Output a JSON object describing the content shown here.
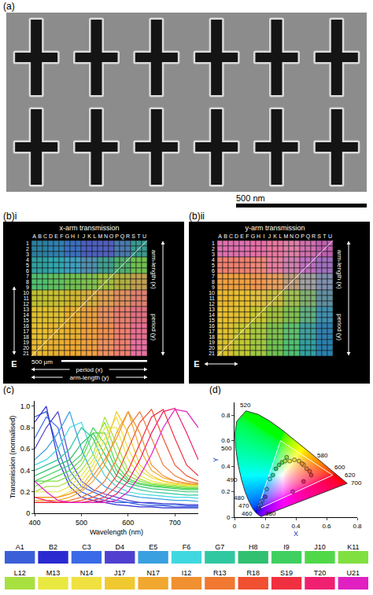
{
  "sem": {
    "label": "(a)",
    "scale_bar": "500 nm",
    "rows": 2,
    "columns": 6
  },
  "grids": [
    {
      "label": "(b)i",
      "title": "x-arm transmission",
      "columns": [
        "A",
        "B",
        "C",
        "D",
        "E",
        "F",
        "G",
        "H",
        "I",
        "J",
        "K",
        "L",
        "M",
        "N",
        "O",
        "P",
        "Q",
        "R",
        "S",
        "T",
        "U"
      ],
      "rows": [
        1,
        2,
        3,
        4,
        5,
        6,
        7,
        8,
        9,
        10,
        11,
        12,
        13,
        14,
        15,
        16,
        17,
        18,
        19,
        20,
        21
      ],
      "block_colors": [
        [
          "#2a7fa0",
          "#2f80b0",
          "#3a70c0",
          "#4a60c0",
          "#5060c0",
          "#4a7ab0",
          "#3a9a90"
        ],
        [
          "#30a0a0",
          "#30a8b0",
          "#40a0c0",
          "#5090b0",
          "#40a090",
          "#50b070",
          "#70c050"
        ],
        [
          "#50c070",
          "#60c060",
          "#70c050",
          "#80c050",
          "#a0c040",
          "#b0b040",
          "#c0a050"
        ],
        [
          "#c0c030",
          "#c8c030",
          "#d0b830",
          "#d8b040",
          "#e0a050",
          "#e09060",
          "#e08070"
        ],
        [
          "#e0c030",
          "#e0c030",
          "#e8b030",
          "#e8a040",
          "#e89060",
          "#e88070",
          "#e07080"
        ],
        [
          "#e8c030",
          "#e8b830",
          "#e8b030",
          "#f0a040",
          "#f09050",
          "#f08070",
          "#e87090"
        ],
        [
          "#e8b830",
          "#e8b030",
          "#f0a830",
          "#f0a040",
          "#f09060",
          "#f08070",
          "#e870a0"
        ]
      ],
      "right_labels": [
        "arm-length (x)",
        "period (y)"
      ],
      "bottom_labels": [
        "period (x)",
        "arm-length (y)"
      ],
      "scale_bar": "500 µm",
      "field": "E",
      "field_direction": "vertical"
    },
    {
      "label": "(b)ii",
      "title": "y-arm transmission",
      "columns": [
        "A",
        "B",
        "C",
        "D",
        "E",
        "F",
        "G",
        "H",
        "I",
        "J",
        "K",
        "L",
        "M",
        "N",
        "O",
        "P",
        "Q",
        "R",
        "S",
        "T",
        "U"
      ],
      "rows": [
        1,
        2,
        3,
        4,
        5,
        6,
        7,
        8,
        9,
        10,
        11,
        12,
        13,
        14,
        15,
        16,
        17,
        18,
        19,
        20,
        21
      ],
      "block_colors": [
        [
          "#e070b0",
          "#e070b0",
          "#e870a8",
          "#e878a0",
          "#e080a8",
          "#d070b0",
          "#c060b0"
        ],
        [
          "#f08070",
          "#f08070",
          "#f08878",
          "#e880a0",
          "#d080b0",
          "#c070c0",
          "#a070c0"
        ],
        [
          "#f0a040",
          "#f0a040",
          "#f09850",
          "#e8a060",
          "#c0a080",
          "#a0a0a0",
          "#8090b0"
        ],
        [
          "#e8b830",
          "#e8c030",
          "#e0c040",
          "#c8c040",
          "#a0c050",
          "#80b070",
          "#6090a0"
        ],
        [
          "#e8c030",
          "#e0c030",
          "#c8c830",
          "#a0c040",
          "#80c050",
          "#60b080",
          "#4090b0"
        ],
        [
          "#e0c030",
          "#c8c830",
          "#a8c840",
          "#80c050",
          "#60c070",
          "#40a0a0",
          "#3080b0"
        ],
        [
          "#d8c030",
          "#c0c830",
          "#a0c840",
          "#70c050",
          "#50c070",
          "#30a0a0",
          "#2880b0"
        ]
      ],
      "right_labels": [
        "arm-length (x)",
        "period (y)"
      ],
      "field": "E",
      "field_direction": "horizontal"
    }
  ],
  "panel_labels": {
    "c": "(c)",
    "d": "(d)"
  },
  "chart_data": [
    {
      "type": "line",
      "x_label": "Wavelength (nm)",
      "y_label": "Transmission (normalised)",
      "x": [
        400,
        425,
        450,
        475,
        500,
        525,
        550,
        575,
        600,
        625,
        650,
        675,
        700,
        725,
        750
      ],
      "xlim": [
        400,
        750
      ],
      "xticks": [
        400,
        500,
        600,
        700
      ],
      "ylim": [
        0,
        1.05
      ],
      "yticks": [
        0,
        0.2,
        0.4,
        0.6,
        0.8,
        {
          "value": 1,
          "label": "1.0"
        }
      ],
      "grid": false,
      "legend": "bottom",
      "series": [
        {
          "name": "A1",
          "color": "#3a5fd8",
          "values": [
            0.9,
            0.95,
            0.6,
            0.3,
            0.2,
            0.15,
            0.12,
            0.1,
            0.1,
            0.08,
            0.07,
            0.07,
            0.06,
            0.06,
            0.06
          ]
        },
        {
          "name": "B2",
          "color": "#2a2ad0",
          "values": [
            0.85,
            1.0,
            0.5,
            0.25,
            0.15,
            0.12,
            0.1,
            0.08,
            0.07,
            0.06,
            0.06,
            0.05,
            0.05,
            0.05,
            0.05
          ]
        },
        {
          "name": "C3",
          "color": "#3a6ae8",
          "values": [
            0.7,
            0.9,
            0.8,
            0.4,
            0.25,
            0.2,
            0.15,
            0.12,
            0.1,
            0.1,
            0.09,
            0.08,
            0.08,
            0.07,
            0.07
          ]
        },
        {
          "name": "D4",
          "color": "#5040d0",
          "values": [
            0.6,
            0.8,
            0.95,
            0.5,
            0.3,
            0.22,
            0.18,
            0.15,
            0.12,
            0.1,
            0.1,
            0.09,
            0.09,
            0.08,
            0.08
          ]
        },
        {
          "name": "E5",
          "color": "#3aa0e0",
          "values": [
            0.5,
            0.6,
            0.75,
            0.95,
            0.6,
            0.35,
            0.25,
            0.2,
            0.17,
            0.15,
            0.14,
            0.13,
            0.12,
            0.12,
            0.11
          ]
        },
        {
          "name": "F6",
          "color": "#40d8e0",
          "values": [
            0.45,
            0.5,
            0.6,
            0.8,
            0.85,
            0.55,
            0.35,
            0.25,
            0.2,
            0.18,
            0.17,
            0.16,
            0.15,
            0.15,
            0.14
          ]
        },
        {
          "name": "G7",
          "color": "#30c8a0",
          "values": [
            0.4,
            0.45,
            0.5,
            0.6,
            0.8,
            0.7,
            0.45,
            0.3,
            0.25,
            0.22,
            0.2,
            0.19,
            0.18,
            0.17,
            0.17
          ]
        },
        {
          "name": "H8",
          "color": "#30c070",
          "values": [
            0.35,
            0.4,
            0.45,
            0.5,
            0.65,
            0.75,
            0.55,
            0.35,
            0.28,
            0.25,
            0.23,
            0.22,
            0.21,
            0.2,
            0.2
          ]
        },
        {
          "name": "I9",
          "color": "#40d060",
          "values": [
            0.3,
            0.35,
            0.4,
            0.45,
            0.55,
            0.8,
            0.65,
            0.4,
            0.3,
            0.27,
            0.25,
            0.24,
            0.23,
            0.22,
            0.22
          ]
        },
        {
          "name": "J10",
          "color": "#50d848",
          "values": [
            0.3,
            0.3,
            0.35,
            0.4,
            0.5,
            0.75,
            0.75,
            0.45,
            0.32,
            0.28,
            0.26,
            0.25,
            0.24,
            0.23,
            0.23
          ]
        },
        {
          "name": "K11",
          "color": "#80e040",
          "values": [
            0.25,
            0.3,
            0.3,
            0.35,
            0.45,
            0.65,
            0.85,
            0.55,
            0.35,
            0.3,
            0.27,
            0.26,
            0.25,
            0.24,
            0.24
          ]
        },
        {
          "name": "L12",
          "color": "#a8e040",
          "values": [
            0.2,
            0.25,
            0.25,
            0.3,
            0.4,
            0.55,
            0.9,
            0.65,
            0.4,
            0.32,
            0.28,
            0.27,
            0.26,
            0.25,
            0.25
          ]
        },
        {
          "name": "M13",
          "color": "#e8e840",
          "values": [
            0.2,
            0.2,
            0.2,
            0.25,
            0.35,
            0.5,
            0.8,
            0.8,
            0.5,
            0.35,
            0.3,
            0.28,
            0.27,
            0.26,
            0.26
          ]
        },
        {
          "name": "N14",
          "color": "#f0e040",
          "values": [
            0.15,
            0.15,
            0.15,
            0.2,
            0.3,
            0.45,
            0.7,
            0.9,
            0.6,
            0.4,
            0.33,
            0.3,
            0.28,
            0.27,
            0.27
          ]
        },
        {
          "name": "J17",
          "color": "#f0c830",
          "values": [
            0.15,
            0.15,
            0.15,
            0.18,
            0.25,
            0.4,
            0.6,
            0.95,
            0.75,
            0.45,
            0.35,
            0.3,
            0.28,
            0.27,
            0.27
          ]
        },
        {
          "name": "N17",
          "color": "#f0a830",
          "values": [
            0.12,
            0.12,
            0.12,
            0.15,
            0.2,
            0.3,
            0.45,
            0.75,
            0.95,
            0.6,
            0.4,
            0.33,
            0.3,
            0.28,
            0.27
          ]
        },
        {
          "name": "I12",
          "color": "#f09030",
          "values": [
            0.15,
            0.15,
            0.15,
            0.18,
            0.22,
            0.35,
            0.5,
            0.7,
            0.95,
            0.75,
            0.45,
            0.35,
            0.3,
            0.28,
            0.27
          ]
        },
        {
          "name": "R13",
          "color": "#f07830",
          "values": [
            0.1,
            0.1,
            0.1,
            0.12,
            0.15,
            0.2,
            0.3,
            0.5,
            0.8,
            0.95,
            0.7,
            0.45,
            0.35,
            0.3,
            0.28
          ]
        },
        {
          "name": "R18",
          "color": "#f05030",
          "values": [
            0.1,
            0.1,
            0.1,
            0.1,
            0.12,
            0.15,
            0.2,
            0.35,
            0.6,
            0.85,
            0.97,
            0.7,
            0.45,
            0.35,
            0.3
          ]
        },
        {
          "name": "S19",
          "color": "#f03040",
          "values": [
            0.1,
            0.1,
            0.1,
            0.1,
            0.1,
            0.12,
            0.15,
            0.25,
            0.4,
            0.65,
            0.9,
            0.97,
            0.7,
            0.45,
            0.35
          ]
        },
        {
          "name": "T20",
          "color": "#f02070",
          "values": [
            0.15,
            0.12,
            0.1,
            0.1,
            0.1,
            0.1,
            0.12,
            0.18,
            0.3,
            0.5,
            0.75,
            0.95,
            0.98,
            0.75,
            0.5
          ]
        },
        {
          "name": "U21",
          "color": "#e020c0",
          "values": [
            0.3,
            0.2,
            0.12,
            0.1,
            0.1,
            0.1,
            0.1,
            0.12,
            0.2,
            0.35,
            0.55,
            0.8,
            0.97,
            0.95,
            0.8
          ]
        }
      ]
    },
    {
      "type": "scatter",
      "x_label": "X",
      "y_label": "Y",
      "xlim": [
        0,
        0.8
      ],
      "xticks": [
        0,
        0.2,
        0.4,
        0.6,
        0.8
      ],
      "ylim": [
        0,
        0.9
      ],
      "yticks": [
        0,
        0.2,
        0.4,
        0.6,
        0.8
      ],
      "grid": false,
      "locus": {
        "wavelength": [
          380,
          420,
          440,
          450,
          460,
          470,
          475,
          480,
          485,
          490,
          495,
          500,
          505,
          510,
          520,
          530,
          540,
          550,
          560,
          570,
          580,
          590,
          600,
          610,
          620,
          640,
          700
        ],
        "x": [
          0.1741,
          0.1714,
          0.1644,
          0.1566,
          0.144,
          0.1241,
          0.1096,
          0.0913,
          0.0687,
          0.0454,
          0.0235,
          0.0082,
          0.0039,
          0.0139,
          0.0743,
          0.1547,
          0.2296,
          0.3016,
          0.3731,
          0.4441,
          0.5125,
          0.5752,
          0.627,
          0.6658,
          0.6915,
          0.719,
          0.7347
        ],
        "y": [
          0.005,
          0.0051,
          0.0109,
          0.0177,
          0.0297,
          0.0578,
          0.0868,
          0.1327,
          0.2007,
          0.295,
          0.4127,
          0.5384,
          0.6548,
          0.7502,
          0.8338,
          0.8059,
          0.7543,
          0.6923,
          0.6245,
          0.5547,
          0.4866,
          0.4242,
          0.3725,
          0.334,
          0.3083,
          0.2809,
          0.2653
        ]
      },
      "locus_labels": [
        380,
        460,
        470,
        480,
        490,
        500,
        520,
        580,
        600,
        620,
        700
      ],
      "gamut": {
        "x": [
          0.64,
          0.3,
          0.15,
          0.64
        ],
        "y": [
          0.33,
          0.6,
          0.06,
          0.33
        ]
      },
      "points": {
        "x": [
          0.17,
          0.16,
          0.18,
          0.2,
          0.21,
          0.23,
          0.25,
          0.27,
          0.29,
          0.31,
          0.34,
          0.33,
          0.36,
          0.39,
          0.42,
          0.45,
          0.44,
          0.47,
          0.49,
          0.5,
          0.45,
          0.38
        ],
        "y": [
          0.1,
          0.07,
          0.13,
          0.16,
          0.22,
          0.3,
          0.33,
          0.38,
          0.41,
          0.43,
          0.47,
          0.44,
          0.44,
          0.45,
          0.44,
          0.41,
          0.42,
          0.38,
          0.36,
          0.33,
          0.28,
          0.2
        ],
        "colors": [
          "#3a5fd8",
          "#2a2ad0",
          "#3a6ae8",
          "#5040d0",
          "#3aa0e0",
          "#40d8e0",
          "#30c8a0",
          "#30c070",
          "#40d060",
          "#50d848",
          "#80e040",
          "#a8e040",
          "#e8e840",
          "#f0e040",
          "#f0c830",
          "#f0a830",
          "#f09030",
          "#f07830",
          "#f05030",
          "#f03040",
          "#f02070",
          "#e020c0"
        ]
      }
    }
  ]
}
